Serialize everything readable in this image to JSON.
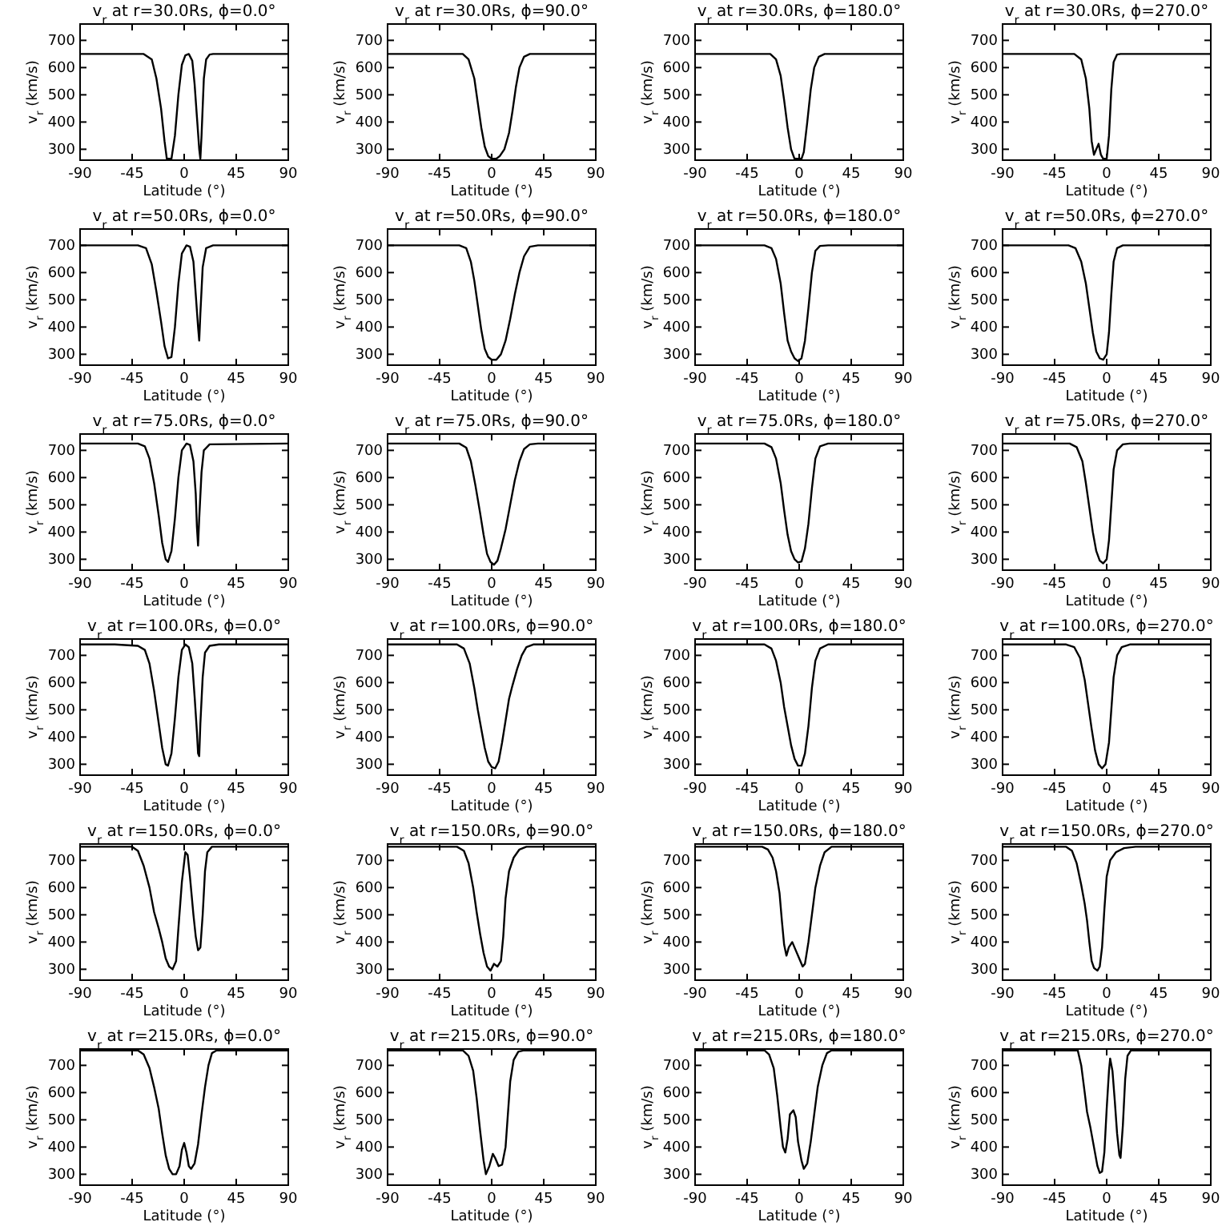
{
  "chart_data": [
    {
      "type": "line",
      "title": "v$_{r}$ at r=30.0Rs, ϕ=0.0°",
      "xlabel": "Latitude (°)",
      "ylabel": "v$_{r}$ (km/s)",
      "xlim": [
        -90,
        90
      ],
      "ylim": [
        260,
        760
      ],
      "xticks": [
        -90,
        -45,
        0,
        45,
        90
      ],
      "yticks": [
        300,
        400,
        500,
        600,
        700
      ],
      "color": "#000000",
      "x": [
        -90,
        -35,
        -28,
        -24,
        -20,
        -17,
        -15,
        -11,
        -8,
        -5,
        -2,
        1,
        4,
        7,
        9,
        11,
        13,
        14,
        15,
        17,
        19,
        22,
        25,
        90
      ],
      "values": [
        650,
        650,
        630,
        560,
        450,
        330,
        265,
        265,
        350,
        500,
        610,
        645,
        650,
        625,
        540,
        420,
        300,
        265,
        350,
        560,
        630,
        648,
        650,
        650
      ]
    },
    {
      "type": "line",
      "title": "v$_{r}$ at r=30.0Rs, ϕ=90.0°",
      "xlabel": "Latitude (°)",
      "ylabel": "v$_{r}$ (km/s)",
      "xlim": [
        -90,
        90
      ],
      "ylim": [
        260,
        760
      ],
      "xticks": [
        -90,
        -45,
        0,
        45,
        90
      ],
      "yticks": [
        300,
        400,
        500,
        600,
        700
      ],
      "color": "#000000",
      "x": [
        -90,
        -25,
        -20,
        -15,
        -12,
        -9,
        -6,
        -3,
        0,
        4,
        7,
        11,
        15,
        18,
        21,
        24,
        28,
        33,
        90
      ],
      "values": [
        650,
        650,
        630,
        560,
        470,
        380,
        310,
        275,
        265,
        265,
        275,
        300,
        360,
        440,
        530,
        600,
        640,
        650,
        650
      ]
    },
    {
      "type": "line",
      "title": "v$_{r}$ at r=30.0Rs, ϕ=180.0°",
      "xlabel": "Latitude (°)",
      "ylabel": "v$_{r}$ (km/s)",
      "xlim": [
        -90,
        90
      ],
      "ylim": [
        260,
        760
      ],
      "xticks": [
        -90,
        -45,
        0,
        45,
        90
      ],
      "yticks": [
        300,
        400,
        500,
        600,
        700
      ],
      "color": "#000000",
      "x": [
        -90,
        -25,
        -20,
        -16,
        -13,
        -10,
        -7,
        -4,
        2,
        4,
        7,
        10,
        13,
        17,
        22,
        90
      ],
      "values": [
        650,
        650,
        630,
        570,
        480,
        380,
        300,
        265,
        265,
        290,
        400,
        520,
        600,
        640,
        650,
        650
      ]
    },
    {
      "type": "line",
      "title": "v$_{r}$ at r=30.0Rs, ϕ=270.0°",
      "xlabel": "Latitude (°)",
      "ylabel": "v$_{r}$ (km/s)",
      "xlim": [
        -90,
        90
      ],
      "ylim": [
        260,
        760
      ],
      "xticks": [
        -90,
        -45,
        0,
        45,
        90
      ],
      "yticks": [
        300,
        400,
        500,
        600,
        700
      ],
      "color": "#000000",
      "x": [
        -90,
        -28,
        -22,
        -18,
        -15,
        -13,
        -11,
        -9,
        -7,
        -5,
        -3,
        0,
        2,
        4,
        6,
        9,
        12,
        90
      ],
      "values": [
        650,
        650,
        630,
        560,
        450,
        330,
        280,
        300,
        320,
        280,
        265,
        265,
        350,
        520,
        620,
        648,
        650,
        650
      ]
    },
    {
      "type": "line",
      "title": "v$_{r}$ at r=50.0Rs, ϕ=0.0°",
      "xlabel": "Latitude (°)",
      "ylabel": "v$_{r}$ (km/s)",
      "xlim": [
        -90,
        90
      ],
      "ylim": [
        260,
        760
      ],
      "xticks": [
        -90,
        -45,
        0,
        45,
        90
      ],
      "yticks": [
        300,
        400,
        500,
        600,
        700
      ],
      "color": "#000000",
      "x": [
        -90,
        -40,
        -33,
        -28,
        -24,
        -20,
        -17,
        -14,
        -11,
        -8,
        -5,
        -2,
        2,
        5,
        8,
        10,
        12,
        13,
        14,
        16,
        19,
        25,
        90
      ],
      "values": [
        700,
        700,
        690,
        630,
        530,
        420,
        330,
        285,
        290,
        400,
        560,
        670,
        700,
        695,
        640,
        520,
        400,
        350,
        450,
        620,
        690,
        700,
        700
      ]
    },
    {
      "type": "line",
      "title": "v$_{r}$ at r=50.0Rs, ϕ=90.0°",
      "xlabel": "Latitude (°)",
      "ylabel": "v$_{r}$ (km/s)",
      "xlim": [
        -90,
        90
      ],
      "ylim": [
        260,
        760
      ],
      "xticks": [
        -90,
        -45,
        0,
        45,
        90
      ],
      "yticks": [
        300,
        400,
        500,
        600,
        700
      ],
      "color": "#000000",
      "x": [
        -90,
        -28,
        -22,
        -18,
        -15,
        -12,
        -9,
        -6,
        -3,
        0,
        4,
        8,
        12,
        16,
        20,
        24,
        28,
        33,
        40,
        90
      ],
      "values": [
        700,
        700,
        690,
        640,
        570,
        480,
        390,
        320,
        290,
        280,
        280,
        300,
        350,
        430,
        520,
        600,
        660,
        695,
        700,
        700
      ]
    },
    {
      "type": "line",
      "title": "v$_{r}$ at r=50.0Rs, ϕ=180.0°",
      "xlabel": "Latitude (°)",
      "ylabel": "v$_{r}$ (km/s)",
      "xlim": [
        -90,
        90
      ],
      "ylim": [
        260,
        760
      ],
      "xticks": [
        -90,
        -45,
        0,
        45,
        90
      ],
      "yticks": [
        300,
        400,
        500,
        600,
        700
      ],
      "color": "#000000",
      "x": [
        -90,
        -30,
        -24,
        -20,
        -16,
        -13,
        -10,
        -7,
        -4,
        -1,
        2,
        5,
        8,
        11,
        14,
        18,
        25,
        90
      ],
      "values": [
        700,
        700,
        690,
        650,
        560,
        450,
        350,
        310,
        285,
        275,
        285,
        350,
        470,
        600,
        680,
        698,
        700,
        700
      ]
    },
    {
      "type": "line",
      "title": "v$_{r}$ at r=50.0Rs, ϕ=270.0°",
      "xlabel": "Latitude (°)",
      "ylabel": "v$_{r}$ (km/s)",
      "xlim": [
        -90,
        90
      ],
      "ylim": [
        260,
        760
      ],
      "xticks": [
        -90,
        -45,
        0,
        45,
        90
      ],
      "yticks": [
        300,
        400,
        500,
        600,
        700
      ],
      "color": "#000000",
      "x": [
        -90,
        -33,
        -27,
        -22,
        -18,
        -15,
        -12,
        -9,
        -6,
        -3,
        0,
        2,
        4,
        6,
        9,
        14,
        90
      ],
      "values": [
        700,
        700,
        690,
        640,
        560,
        470,
        380,
        310,
        285,
        280,
        300,
        380,
        520,
        640,
        690,
        700,
        700
      ]
    },
    {
      "type": "line",
      "title": "v$_{r}$ at r=75.0Rs, ϕ=0.0°",
      "xlabel": "Latitude (°)",
      "ylabel": "v$_{r}$ (km/s)",
      "xlim": [
        -90,
        90
      ],
      "ylim": [
        260,
        760
      ],
      "xticks": [
        -90,
        -45,
        0,
        45,
        90
      ],
      "yticks": [
        300,
        400,
        500,
        600,
        700
      ],
      "color": "#000000",
      "x": [
        -90,
        -40,
        -34,
        -30,
        -26,
        -22,
        -19,
        -16,
        -14,
        -11,
        -8,
        -5,
        -2,
        2,
        5,
        8,
        10,
        11,
        12,
        13,
        15,
        17,
        22,
        90
      ],
      "values": [
        725,
        725,
        715,
        670,
        580,
        460,
        360,
        300,
        290,
        330,
        450,
        600,
        700,
        725,
        720,
        660,
        540,
        420,
        350,
        450,
        620,
        700,
        722,
        725
      ]
    },
    {
      "type": "line",
      "title": "v$_{r}$ at r=75.0Rs, ϕ=90.0°",
      "xlabel": "Latitude (°)",
      "ylabel": "v$_{r}$ (km/s)",
      "xlim": [
        -90,
        90
      ],
      "ylim": [
        260,
        760
      ],
      "xticks": [
        -90,
        -45,
        0,
        45,
        90
      ],
      "yticks": [
        300,
        400,
        500,
        600,
        700
      ],
      "color": "#000000",
      "x": [
        -90,
        -28,
        -22,
        -18,
        -14,
        -10,
        -7,
        -4,
        -1,
        2,
        5,
        8,
        12,
        16,
        20,
        24,
        28,
        33,
        40,
        90
      ],
      "values": [
        725,
        725,
        710,
        660,
        570,
        470,
        390,
        320,
        290,
        280,
        295,
        340,
        410,
        500,
        590,
        660,
        705,
        722,
        725,
        725
      ]
    },
    {
      "type": "line",
      "title": "v$_{r}$ at r=75.0Rs, ϕ=180.0°",
      "xlabel": "Latitude (°)",
      "ylabel": "v$_{r}$ (km/s)",
      "xlim": [
        -90,
        90
      ],
      "ylim": [
        260,
        760
      ],
      "xticks": [
        -90,
        -45,
        0,
        45,
        90
      ],
      "yticks": [
        300,
        400,
        500,
        600,
        700
      ],
      "color": "#000000",
      "x": [
        -90,
        -30,
        -24,
        -20,
        -16,
        -13,
        -10,
        -7,
        -4,
        -1,
        2,
        5,
        8,
        11,
        14,
        18,
        25,
        90
      ],
      "values": [
        725,
        725,
        712,
        670,
        580,
        480,
        390,
        330,
        300,
        288,
        292,
        340,
        430,
        560,
        670,
        715,
        725,
        725
      ]
    },
    {
      "type": "line",
      "title": "v$_{r}$ at r=75.0Rs, ϕ=270.0°",
      "xlabel": "Latitude (°)",
      "ylabel": "v$_{r}$ (km/s)",
      "xlim": [
        -90,
        90
      ],
      "ylim": [
        260,
        760
      ],
      "xticks": [
        -90,
        -45,
        0,
        45,
        90
      ],
      "yticks": [
        300,
        400,
        500,
        600,
        700
      ],
      "color": "#000000",
      "x": [
        -90,
        -32,
        -26,
        -21,
        -18,
        -15,
        -12,
        -9,
        -6,
        -3,
        0,
        2,
        4,
        6,
        9,
        14,
        20,
        90
      ],
      "values": [
        725,
        725,
        712,
        660,
        580,
        490,
        400,
        330,
        295,
        285,
        300,
        370,
        500,
        630,
        700,
        722,
        725,
        725
      ]
    },
    {
      "type": "line",
      "title": "v$_{r}$ at r=100.0Rs, ϕ=0.0°",
      "xlabel": "Latitude (°)",
      "ylabel": "v$_{r}$ (km/s)",
      "xlim": [
        -90,
        90
      ],
      "ylim": [
        260,
        760
      ],
      "xticks": [
        -90,
        -45,
        0,
        45,
        90
      ],
      "yticks": [
        300,
        400,
        500,
        600,
        700
      ],
      "color": "#000000",
      "x": [
        -90,
        -60,
        -40,
        -34,
        -30,
        -26,
        -22,
        -19,
        -16,
        -14,
        -11,
        -8,
        -5,
        -2,
        1,
        4,
        7,
        9,
        11,
        12,
        13,
        14,
        16,
        18,
        22,
        30,
        90
      ],
      "values": [
        740,
        740,
        735,
        720,
        670,
        570,
        450,
        360,
        300,
        295,
        340,
        470,
        620,
        720,
        740,
        730,
        670,
        550,
        420,
        340,
        330,
        450,
        620,
        710,
        735,
        740,
        740
      ]
    },
    {
      "type": "line",
      "title": "v$_{r}$ at r=100.0Rs, ϕ=90.0°",
      "xlabel": "Latitude (°)",
      "ylabel": "v$_{r}$ (km/s)",
      "xlim": [
        -90,
        90
      ],
      "ylim": [
        260,
        760
      ],
      "xticks": [
        -90,
        -45,
        0,
        45,
        90
      ],
      "yticks": [
        300,
        400,
        500,
        600,
        700
      ],
      "color": "#000000",
      "x": [
        -90,
        -30,
        -24,
        -19,
        -15,
        -12,
        -9,
        -6,
        -3,
        0,
        3,
        6,
        9,
        12,
        15,
        18,
        22,
        26,
        30,
        36,
        90
      ],
      "values": [
        740,
        740,
        725,
        670,
        580,
        500,
        430,
        360,
        310,
        290,
        285,
        310,
        380,
        460,
        540,
        590,
        650,
        700,
        730,
        740,
        740
      ]
    },
    {
      "type": "line",
      "title": "v$_{r}$ at r=100.0Rs, ϕ=180.0°",
      "xlabel": "Latitude (°)",
      "ylabel": "v$_{r}$ (km/s)",
      "xlim": [
        -90,
        90
      ],
      "ylim": [
        260,
        760
      ],
      "xticks": [
        -90,
        -45,
        0,
        45,
        90
      ],
      "yticks": [
        300,
        400,
        500,
        600,
        700
      ],
      "color": "#000000",
      "x": [
        -90,
        -30,
        -24,
        -20,
        -16,
        -13,
        -10,
        -7,
        -4,
        -1,
        2,
        5,
        8,
        11,
        14,
        18,
        25,
        90
      ],
      "values": [
        740,
        740,
        725,
        680,
        600,
        510,
        440,
        370,
        320,
        295,
        295,
        340,
        440,
        580,
        680,
        725,
        740,
        740
      ]
    },
    {
      "type": "line",
      "title": "v$_{r}$ at r=100.0Rs, ϕ=270.0°",
      "xlabel": "Latitude (°)",
      "ylabel": "v$_{r}$ (km/s)",
      "xlim": [
        -90,
        90
      ],
      "ylim": [
        260,
        760
      ],
      "xticks": [
        -90,
        -45,
        0,
        45,
        90
      ],
      "yticks": [
        300,
        400,
        500,
        600,
        700
      ],
      "color": "#000000",
      "x": [
        -90,
        -35,
        -28,
        -23,
        -19,
        -16,
        -13,
        -10,
        -7,
        -4,
        -1,
        2,
        4,
        6,
        9,
        13,
        20,
        90
      ],
      "values": [
        740,
        740,
        730,
        690,
        610,
        520,
        430,
        350,
        300,
        285,
        300,
        380,
        500,
        620,
        700,
        730,
        740,
        740
      ]
    },
    {
      "type": "line",
      "title": "v$_{r}$ at r=150.0Rs, ϕ=0.0°",
      "xlabel": "Latitude (°)",
      "ylabel": "v$_{r}$ (km/s)",
      "xlim": [
        -90,
        90
      ],
      "ylim": [
        260,
        760
      ],
      "xticks": [
        -90,
        -45,
        0,
        45,
        90
      ],
      "yticks": [
        300,
        400,
        500,
        600,
        700
      ],
      "color": "#000000",
      "x": [
        -90,
        -45,
        -40,
        -35,
        -30,
        -26,
        -22,
        -19,
        -16,
        -13,
        -10,
        -7,
        -5,
        -2,
        1,
        3,
        5,
        8,
        10,
        12,
        14,
        16,
        18,
        20,
        24,
        90
      ],
      "values": [
        750,
        750,
        735,
        680,
        600,
        510,
        450,
        400,
        340,
        310,
        300,
        330,
        450,
        620,
        730,
        720,
        640,
        500,
        420,
        370,
        380,
        500,
        660,
        730,
        750,
        750
      ]
    },
    {
      "type": "line",
      "title": "v$_{r}$ at r=150.0Rs, ϕ=90.0°",
      "xlabel": "Latitude (°)",
      "ylabel": "v$_{r}$ (km/s)",
      "xlim": [
        -90,
        90
      ],
      "ylim": [
        260,
        760
      ],
      "xticks": [
        -90,
        -45,
        0,
        45,
        90
      ],
      "yticks": [
        300,
        400,
        500,
        600,
        700
      ],
      "color": "#000000",
      "x": [
        -90,
        -30,
        -24,
        -20,
        -16,
        -13,
        -10,
        -7,
        -4,
        -1,
        2,
        5,
        8,
        10,
        12,
        15,
        19,
        24,
        30,
        90
      ],
      "values": [
        750,
        750,
        735,
        690,
        600,
        510,
        430,
        360,
        310,
        295,
        320,
        310,
        330,
        420,
        560,
        660,
        710,
        740,
        750,
        750
      ]
    },
    {
      "type": "line",
      "title": "v$_{r}$ at r=150.0Rs, ϕ=180.0°",
      "xlabel": "Latitude (°)",
      "ylabel": "v$_{r}$ (km/s)",
      "xlim": [
        -90,
        90
      ],
      "ylim": [
        260,
        760
      ],
      "xticks": [
        -90,
        -45,
        0,
        45,
        90
      ],
      "yticks": [
        300,
        400,
        500,
        600,
        700
      ],
      "color": "#000000",
      "x": [
        -90,
        -32,
        -27,
        -23,
        -20,
        -17,
        -15,
        -13,
        -11,
        -9,
        -6,
        -3,
        0,
        3,
        5,
        8,
        11,
        14,
        18,
        22,
        28,
        90
      ],
      "values": [
        750,
        750,
        740,
        710,
        660,
        580,
        480,
        390,
        350,
        380,
        400,
        370,
        340,
        310,
        320,
        400,
        500,
        600,
        680,
        730,
        750,
        750
      ]
    },
    {
      "type": "line",
      "title": "v$_{r}$ at r=150.0Rs, ϕ=270.0°",
      "xlabel": "Latitude (°)",
      "ylabel": "v$_{r}$ (km/s)",
      "xlim": [
        -90,
        90
      ],
      "ylim": [
        260,
        760
      ],
      "xticks": [
        -90,
        -45,
        0,
        45,
        90
      ],
      "yticks": [
        300,
        400,
        500,
        600,
        700
      ],
      "color": "#000000",
      "x": [
        -90,
        -35,
        -30,
        -26,
        -22,
        -19,
        -17,
        -15,
        -13,
        -11,
        -8,
        -6,
        -4,
        -2,
        0,
        3,
        8,
        15,
        25,
        90
      ],
      "values": [
        750,
        750,
        735,
        690,
        610,
        540,
        480,
        400,
        330,
        305,
        295,
        310,
        380,
        520,
        640,
        700,
        730,
        745,
        750,
        750
      ]
    },
    {
      "type": "line",
      "title": "v$_{r}$ at r=215.0Rs, ϕ=0.0°",
      "xlabel": "Latitude (°)",
      "ylabel": "v$_{r}$ (km/s)",
      "xlim": [
        -90,
        90
      ],
      "ylim": [
        260,
        760
      ],
      "xticks": [
        -90,
        -45,
        0,
        45,
        90
      ],
      "yticks": [
        300,
        400,
        500,
        600,
        700
      ],
      "color": "#000000",
      "x": [
        -90,
        -40,
        -35,
        -30,
        -26,
        -22,
        -19,
        -16,
        -13,
        -10,
        -7,
        -4,
        -2,
        0,
        2,
        4,
        6,
        9,
        12,
        15,
        18,
        21,
        24,
        28,
        90
      ],
      "values": [
        755,
        755,
        740,
        690,
        620,
        540,
        450,
        370,
        320,
        300,
        300,
        330,
        390,
        415,
        380,
        330,
        320,
        340,
        410,
        520,
        620,
        700,
        745,
        755,
        755
      ]
    },
    {
      "type": "line",
      "title": "v$_{r}$ at r=215.0Rs, ϕ=90.0°",
      "xlabel": "Latitude (°)",
      "ylabel": "v$_{r}$ (km/s)",
      "xlim": [
        -90,
        90
      ],
      "ylim": [
        260,
        760
      ],
      "xticks": [
        -90,
        -45,
        0,
        45,
        90
      ],
      "yticks": [
        300,
        400,
        500,
        600,
        700
      ],
      "color": "#000000",
      "x": [
        -90,
        -25,
        -20,
        -16,
        -13,
        -10,
        -7,
        -5,
        -2,
        1,
        3,
        6,
        9,
        12,
        14,
        16,
        19,
        23,
        28,
        90
      ],
      "values": [
        755,
        755,
        735,
        680,
        580,
        460,
        350,
        300,
        330,
        375,
        360,
        330,
        335,
        400,
        520,
        640,
        720,
        750,
        755,
        755
      ]
    },
    {
      "type": "line",
      "title": "v$_{r}$ at r=215.0Rs, ϕ=180.0°",
      "xlabel": "Latitude (°)",
      "ylabel": "v$_{r}$ (km/s)",
      "xlim": [
        -90,
        90
      ],
      "ylim": [
        260,
        760
      ],
      "xticks": [
        -90,
        -45,
        0,
        45,
        90
      ],
      "yticks": [
        300,
        400,
        500,
        600,
        700
      ],
      "color": "#000000",
      "x": [
        -90,
        -30,
        -26,
        -22,
        -19,
        -16,
        -14,
        -12,
        -10,
        -8,
        -5,
        -3,
        -1,
        2,
        4,
        7,
        10,
        13,
        16,
        20,
        24,
        28,
        90
      ],
      "values": [
        755,
        755,
        740,
        690,
        590,
        470,
        400,
        380,
        430,
        520,
        535,
        510,
        420,
        350,
        320,
        340,
        420,
        520,
        620,
        700,
        745,
        755,
        755
      ]
    },
    {
      "type": "line",
      "title": "v$_{r}$ at r=215.0Rs, ϕ=270.0°",
      "xlabel": "Latitude (°)",
      "ylabel": "v$_{r}$ (km/s)",
      "xlim": [
        -90,
        90
      ],
      "ylim": [
        260,
        760
      ],
      "xticks": [
        -90,
        -45,
        0,
        45,
        90
      ],
      "yticks": [
        300,
        400,
        500,
        600,
        700
      ],
      "color": "#000000",
      "x": [
        -90,
        -25,
        -22,
        -19,
        -17,
        -14,
        -11,
        -8,
        -6,
        -4,
        -2,
        0,
        2,
        3,
        5,
        7,
        9,
        11,
        12,
        14,
        16,
        18,
        21,
        90
      ],
      "values": [
        755,
        755,
        700,
        600,
        530,
        470,
        400,
        330,
        305,
        310,
        380,
        540,
        680,
        725,
        680,
        570,
        450,
        370,
        360,
        480,
        650,
        735,
        755,
        755
      ]
    }
  ]
}
